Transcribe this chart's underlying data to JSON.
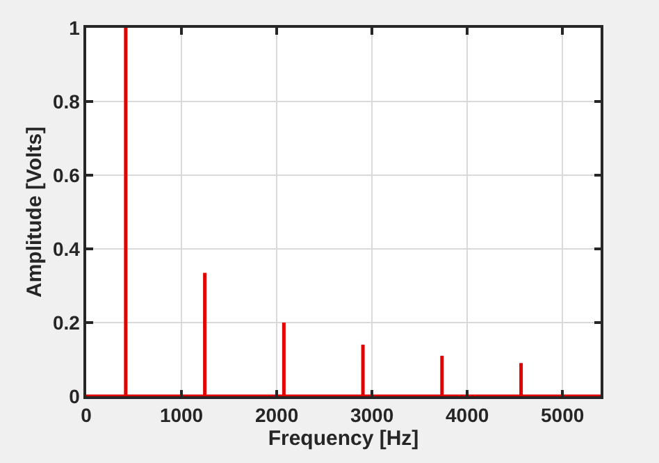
{
  "chart_data": {
    "type": "line",
    "xlabel": "Frequency [Hz]",
    "ylabel": "Amplitude [Volts]",
    "x": [
      0,
      415,
      415,
      415,
      1245,
      1245,
      1245,
      2075,
      2075,
      2075,
      2905,
      2905,
      2905,
      3735,
      3735,
      3735,
      4565,
      4565,
      4565,
      5400
    ],
    "series": [
      {
        "color": "#e00000",
        "values": [
          0,
          0,
          1,
          0,
          0,
          0.335,
          0,
          0,
          0.2,
          0,
          0,
          0.14,
          0,
          0,
          0.11,
          0,
          0,
          0.09,
          0,
          0
        ]
      }
    ],
    "xlim": [
      0,
      5400
    ],
    "xticks": [
      0,
      1000,
      2000,
      3000,
      4000,
      5000
    ],
    "ylim": [
      0,
      1
    ],
    "yticks": [
      0,
      0.2,
      0.4,
      0.6,
      0.8,
      1
    ],
    "grid": true,
    "marker": "none",
    "line_style": "solid",
    "legend": false
  }
}
